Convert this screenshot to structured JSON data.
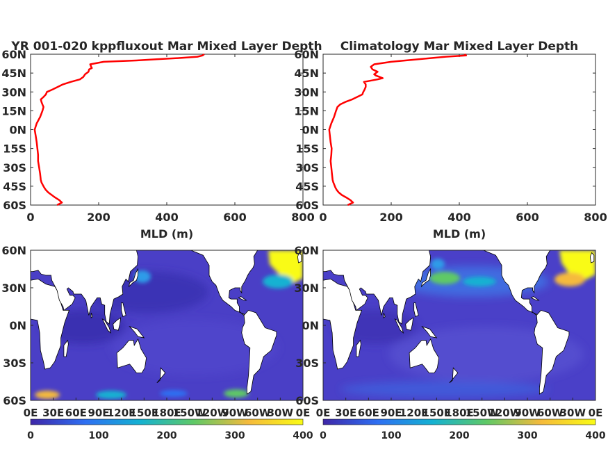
{
  "chart_data": [
    {
      "type": "line",
      "title": "YR 001-020 kppfluxout Mar Mixed Layer Depth",
      "xlabel": "MLD (m)",
      "ylabel": "",
      "xlim": [
        0,
        800
      ],
      "ylim": [
        -60,
        60
      ],
      "xticks": [
        "0",
        "200",
        "400",
        "600",
        "800"
      ],
      "yticks": [
        "60S",
        "45S",
        "30S",
        "15S",
        "0N",
        "15N",
        "30N",
        "45N",
        "60N"
      ],
      "grid": false,
      "color": "#ff0000",
      "series": [
        {
          "lat": [
            -60,
            -58,
            -56,
            -54,
            -52,
            -50,
            -48,
            -46,
            -44,
            -42,
            -40,
            -35,
            -30,
            -25,
            -20,
            -15,
            -10,
            -5,
            0,
            5,
            10,
            15,
            18,
            20,
            22,
            24,
            26,
            28,
            30,
            32,
            34,
            36,
            38,
            40,
            42,
            44,
            46,
            48,
            49,
            50,
            52,
            54,
            55,
            56,
            57,
            58,
            59,
            60
          ],
          "mld": [
            78,
            92,
            84,
            72,
            62,
            52,
            45,
            40,
            36,
            32,
            30,
            28,
            25,
            22,
            22,
            20,
            18,
            15,
            12,
            18,
            28,
            35,
            38,
            35,
            32,
            30,
            38,
            45,
            48,
            65,
            80,
            95,
            118,
            145,
            155,
            160,
            170,
            172,
            180,
            178,
            175,
            215,
            310,
            370,
            440,
            490,
            505,
            510
          ]
        }
      ]
    },
    {
      "type": "line",
      "title": "Climatology Mar Mixed Layer Depth",
      "xlabel": "MLD (m)",
      "ylabel": "",
      "xlim": [
        0,
        800
      ],
      "ylim": [
        -60,
        60
      ],
      "xticks": [
        "0",
        "200",
        "400",
        "600",
        "800"
      ],
      "yticks": [
        "60S",
        "45S",
        "30S",
        "15S",
        "0N",
        "15N",
        "30N",
        "45N",
        "60N"
      ],
      "grid": false,
      "color": "#ff0000",
      "series": [
        {
          "lat": [
            -60,
            -58,
            -56,
            -54,
            -52,
            -50,
            -48,
            -46,
            -44,
            -42,
            -40,
            -35,
            -30,
            -25,
            -20,
            -15,
            -10,
            -5,
            0,
            5,
            10,
            15,
            18,
            20,
            22,
            24,
            26,
            28,
            30,
            32,
            34,
            36,
            38,
            40,
            41,
            42,
            43,
            44,
            46,
            48,
            50,
            52,
            54,
            56,
            58,
            59,
            60
          ],
          "mld": [
            72,
            88,
            80,
            68,
            55,
            46,
            40,
            36,
            33,
            30,
            28,
            26,
            24,
            22,
            24,
            25,
            22,
            20,
            18,
            24,
            32,
            38,
            42,
            50,
            65,
            85,
            100,
            115,
            118,
            122,
            125,
            125,
            120,
            160,
            175,
            165,
            155,
            150,
            160,
            145,
            140,
            150,
            200,
            280,
            360,
            420,
            415
          ]
        }
      ]
    },
    {
      "type": "heatmap",
      "title": "",
      "xticks": [
        "0E",
        "30E",
        "60E",
        "90E",
        "120E",
        "150E",
        "180E",
        "150W",
        "120W",
        "90W",
        "60W",
        "30W",
        "0E"
      ],
      "yticks": [
        "60S",
        "30S",
        "0N",
        "30N",
        "60N"
      ],
      "colorbar_ticks": [
        "0",
        "100",
        "200",
        "300",
        "400"
      ],
      "colorbar_range": [
        0,
        400
      ],
      "colormap": [
        "#3e26a8",
        "#2e6ff2",
        "#14b1d2",
        "#5fc966",
        "#f5ba3c",
        "#f9fb15"
      ],
      "hotspots": [
        {
          "lon": 320,
          "lat": 55,
          "value": 400
        },
        {
          "lon": 325,
          "lat": 45,
          "value": 250
        },
        {
          "lon": 155,
          "lat": 40,
          "value": 150
        },
        {
          "lon": 140,
          "lat": 35,
          "value": 130
        },
        {
          "lon": 25,
          "lat": -57,
          "value": 280
        },
        {
          "lon": 120,
          "lat": -55,
          "value": 230
        },
        {
          "lon": 300,
          "lat": -55,
          "value": 180
        }
      ],
      "land_value": "white"
    },
    {
      "type": "heatmap",
      "title": "",
      "xticks": [
        "0E",
        "30E",
        "60E",
        "90E",
        "120E",
        "150E",
        "180E",
        "150W",
        "120W",
        "90W",
        "60W",
        "30W",
        "0E"
      ],
      "yticks": [
        "60S",
        "30S",
        "0N",
        "30N",
        "60N"
      ],
      "colorbar_ticks": [
        "0",
        "100",
        "200",
        "300",
        "400"
      ],
      "colorbar_range": [
        0,
        400
      ],
      "colormap": [
        "#3e26a8",
        "#2e6ff2",
        "#14b1d2",
        "#5fc966",
        "#f5ba3c",
        "#f9fb15"
      ],
      "hotspots": [
        {
          "lon": 320,
          "lat": 55,
          "value": 400
        },
        {
          "lon": 325,
          "lat": 45,
          "value": 300
        },
        {
          "lon": 165,
          "lat": 40,
          "value": 200
        },
        {
          "lon": 200,
          "lat": 42,
          "value": 160
        },
        {
          "lon": 120,
          "lat": 45,
          "value": 140
        }
      ],
      "land_value": "white"
    }
  ]
}
